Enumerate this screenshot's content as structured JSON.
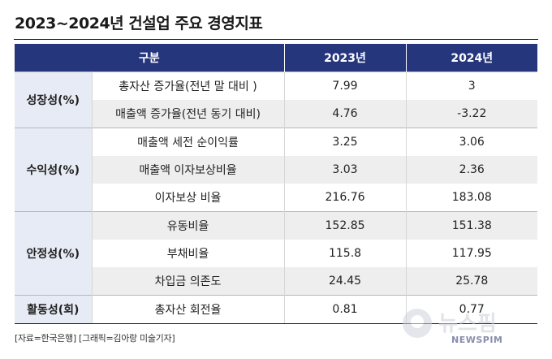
{
  "title": "2023~2024년 건설업 주요 경영지표",
  "table": {
    "headers": [
      "구분",
      "2023년",
      "2024년"
    ],
    "groups": [
      {
        "name": "성장성(%)",
        "rows": [
          {
            "label": "총자산 증가율(전년 말 대비 )",
            "v2023": "7.99",
            "v2024": "3"
          },
          {
            "label": "매출액 증가율(전년 동기 대비)",
            "v2023": "4.76",
            "v2024": "-3.22"
          }
        ]
      },
      {
        "name": "수익성(%)",
        "rows": [
          {
            "label": "매출액 세전 순이익률",
            "v2023": "3.25",
            "v2024": "3.06"
          },
          {
            "label": "매출액 이자보상비율",
            "v2023": "3.03",
            "v2024": "2.36"
          },
          {
            "label": "이자보상 비율",
            "v2023": "216.76",
            "v2024": "183.08"
          }
        ]
      },
      {
        "name": "안정성(%)",
        "rows": [
          {
            "label": "유동비율",
            "v2023": "152.85",
            "v2024": "151.38"
          },
          {
            "label": "부채비율",
            "v2023": "115.8",
            "v2024": "117.95"
          },
          {
            "label": "차입금 의존도",
            "v2023": "24.45",
            "v2024": "25.78"
          }
        ]
      },
      {
        "name": "활동성(회)",
        "rows": [
          {
            "label": "총자산 회전율",
            "v2023": "0.81",
            "v2024": "0.77"
          }
        ]
      }
    ]
  },
  "source": "[자료=한국은행] [그래픽=김아랑 미술기자]",
  "logo": {
    "name": "뉴스핌",
    "sub": "NEWSPIM"
  },
  "colors": {
    "header": "#25367d",
    "group_cell": "#e7ebf5",
    "shade": "#eeeeee"
  }
}
